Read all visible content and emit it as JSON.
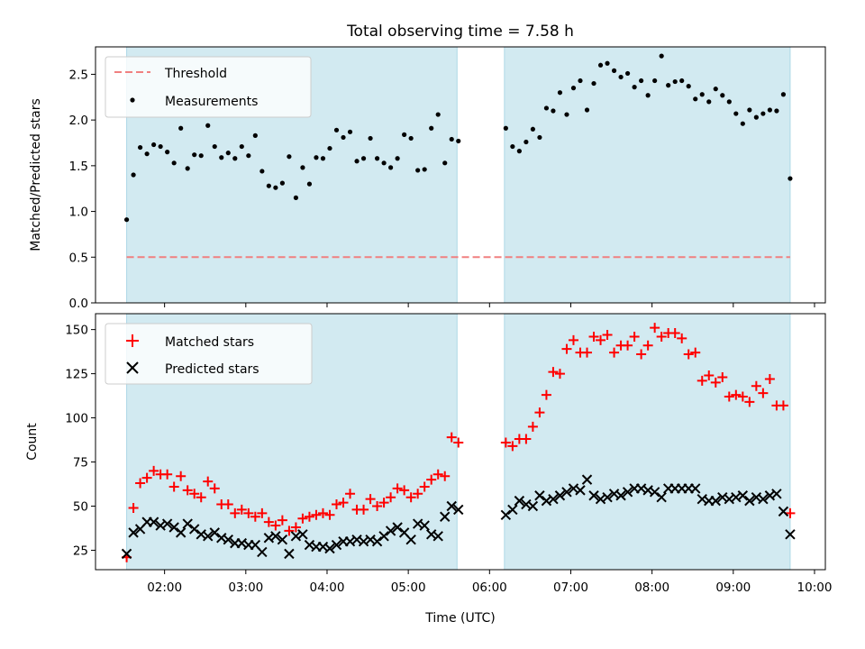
{
  "title": "Total observing time = 7.58 h",
  "colors": {
    "shade": "#add8e6",
    "threshold": "#f08080",
    "measurement": "#000000",
    "matched": "#ff0000",
    "predicted": "#000000"
  },
  "chart_data": [
    {
      "type": "scatter",
      "ylabel": "Matched/Predicted stars",
      "ylim": [
        0,
        2.8
      ],
      "yticks": [
        0.0,
        0.5,
        1.0,
        1.5,
        2.0,
        2.5
      ],
      "ytick_labels": [
        "0.0",
        "0.5",
        "1.0",
        "1.5",
        "2.0",
        "2.5"
      ],
      "legend_position": "upper-left",
      "threshold": {
        "name": "Threshold",
        "value": 0.5,
        "x_start": "01:32",
        "x_end": "09:42"
      },
      "shaded_intervals": [
        [
          "01:32",
          "05:36"
        ],
        [
          "06:11",
          "09:42"
        ]
      ],
      "series": [
        {
          "name": "Measurements",
          "x": [
            "01:32",
            "01:37",
            "01:42",
            "01:47",
            "01:52",
            "01:57",
            "02:02",
            "02:07",
            "02:12",
            "02:17",
            "02:22",
            "02:27",
            "02:32",
            "02:37",
            "02:42",
            "02:47",
            "02:52",
            "02:57",
            "03:02",
            "03:07",
            "03:12",
            "03:17",
            "03:22",
            "03:27",
            "03:32",
            "03:37",
            "03:42",
            "03:47",
            "03:52",
            "03:57",
            "04:02",
            "04:07",
            "04:12",
            "04:17",
            "04:22",
            "04:27",
            "04:32",
            "04:37",
            "04:42",
            "04:47",
            "04:52",
            "04:57",
            "05:02",
            "05:07",
            "05:12",
            "05:17",
            "05:22",
            "05:27",
            "05:32",
            "05:37",
            "06:12",
            "06:17",
            "06:22",
            "06:27",
            "06:32",
            "06:37",
            "06:42",
            "06:47",
            "06:52",
            "06:57",
            "07:02",
            "07:07",
            "07:12",
            "07:17",
            "07:22",
            "07:27",
            "07:32",
            "07:37",
            "07:42",
            "07:47",
            "07:52",
            "07:57",
            "08:02",
            "08:07",
            "08:12",
            "08:17",
            "08:22",
            "08:27",
            "08:32",
            "08:37",
            "08:42",
            "08:47",
            "08:52",
            "08:57",
            "09:02",
            "09:07",
            "09:12",
            "09:17",
            "09:22",
            "09:27",
            "09:32",
            "09:37",
            "09:42"
          ],
          "y": [
            0.91,
            1.4,
            1.7,
            1.63,
            1.73,
            1.71,
            1.65,
            1.53,
            1.91,
            1.47,
            1.62,
            1.61,
            1.94,
            1.71,
            1.59,
            1.64,
            1.58,
            1.71,
            1.61,
            1.83,
            1.44,
            1.28,
            1.26,
            1.31,
            1.6,
            1.15,
            1.48,
            1.3,
            1.59,
            1.58,
            1.69,
            1.89,
            1.81,
            1.87,
            1.55,
            1.58,
            1.8,
            1.58,
            1.53,
            1.48,
            1.58,
            1.84,
            1.8,
            1.45,
            1.46,
            1.91,
            2.06,
            1.53,
            1.79,
            1.77,
            1.91,
            1.71,
            1.66,
            1.76,
            1.9,
            1.81,
            2.13,
            2.1,
            2.3,
            2.06,
            2.35,
            2.43,
            2.11,
            2.4,
            2.6,
            2.62,
            2.54,
            2.47,
            2.51,
            2.36,
            2.43,
            2.27,
            2.43,
            2.7,
            2.38,
            2.42,
            2.43,
            2.37,
            2.23,
            2.28,
            2.2,
            2.34,
            2.27,
            2.2,
            2.07,
            1.96,
            2.11,
            2.03,
            2.07,
            2.11,
            2.1,
            2.28,
            1.36
          ]
        }
      ]
    },
    {
      "type": "scatter",
      "xlabel": "Time (UTC)",
      "ylabel": "Count",
      "ylim": [
        14,
        159
      ],
      "yticks": [
        25,
        50,
        75,
        100,
        125,
        150
      ],
      "ytick_labels": [
        "25",
        "50",
        "75",
        "100",
        "125",
        "150"
      ],
      "x_tick_labels": [
        "02:00",
        "03:00",
        "04:00",
        "05:00",
        "06:00",
        "07:00",
        "08:00",
        "09:00",
        "10:00"
      ],
      "xlim": [
        "01:09",
        "10:08"
      ],
      "legend_position": "upper-left",
      "shaded_intervals": [
        [
          "01:32",
          "05:36"
        ],
        [
          "06:11",
          "09:42"
        ]
      ],
      "series": [
        {
          "name": "Matched stars",
          "x": [
            "01:32",
            "01:37",
            "01:42",
            "01:47",
            "01:52",
            "01:57",
            "02:02",
            "02:07",
            "02:12",
            "02:17",
            "02:22",
            "02:27",
            "02:32",
            "02:37",
            "02:42",
            "02:47",
            "02:52",
            "02:57",
            "03:02",
            "03:07",
            "03:12",
            "03:17",
            "03:22",
            "03:27",
            "03:32",
            "03:37",
            "03:42",
            "03:47",
            "03:52",
            "03:57",
            "04:02",
            "04:07",
            "04:12",
            "04:17",
            "04:22",
            "04:27",
            "04:32",
            "04:37",
            "04:42",
            "04:47",
            "04:52",
            "04:57",
            "05:02",
            "05:07",
            "05:12",
            "05:17",
            "05:22",
            "05:27",
            "05:32",
            "05:37",
            "06:12",
            "06:17",
            "06:22",
            "06:27",
            "06:32",
            "06:37",
            "06:42",
            "06:47",
            "06:52",
            "06:57",
            "07:02",
            "07:07",
            "07:12",
            "07:17",
            "07:22",
            "07:27",
            "07:32",
            "07:37",
            "07:42",
            "07:47",
            "07:52",
            "07:57",
            "08:02",
            "08:07",
            "08:12",
            "08:17",
            "08:22",
            "08:27",
            "08:32",
            "08:37",
            "08:42",
            "08:47",
            "08:52",
            "08:57",
            "09:02",
            "09:07",
            "09:12",
            "09:17",
            "09:22",
            "09:27",
            "09:32",
            "09:37",
            "09:42"
          ],
          "y": [
            21,
            49,
            63,
            66,
            70,
            68,
            68,
            61,
            67,
            59,
            57,
            55,
            64,
            60,
            51,
            51,
            46,
            48,
            46,
            44,
            46,
            41,
            39,
            42,
            36,
            38,
            43,
            44,
            45,
            46,
            45,
            51,
            52,
            57,
            48,
            48,
            54,
            50,
            52,
            55,
            60,
            59,
            55,
            57,
            61,
            65,
            68,
            67,
            89,
            86,
            86,
            84,
            88,
            88,
            95,
            103,
            113,
            126,
            125,
            139,
            144,
            137,
            137,
            146,
            144,
            147,
            137,
            141,
            141,
            146,
            136,
            141,
            151,
            146,
            148,
            148,
            145,
            136,
            137,
            121,
            124,
            120,
            123,
            112,
            113,
            112,
            109,
            118,
            114,
            122,
            107,
            107,
            46
          ]
        },
        {
          "name": "Predicted stars",
          "x": [
            "01:32",
            "01:37",
            "01:42",
            "01:47",
            "01:52",
            "01:57",
            "02:02",
            "02:07",
            "02:12",
            "02:17",
            "02:22",
            "02:27",
            "02:32",
            "02:37",
            "02:42",
            "02:47",
            "02:52",
            "02:57",
            "03:02",
            "03:07",
            "03:12",
            "03:17",
            "03:22",
            "03:27",
            "03:32",
            "03:37",
            "03:42",
            "03:47",
            "03:52",
            "03:57",
            "04:02",
            "04:07",
            "04:12",
            "04:17",
            "04:22",
            "04:27",
            "04:32",
            "04:37",
            "04:42",
            "04:47",
            "04:52",
            "04:57",
            "05:02",
            "05:07",
            "05:12",
            "05:17",
            "05:22",
            "05:27",
            "05:32",
            "05:37",
            "06:12",
            "06:17",
            "06:22",
            "06:27",
            "06:32",
            "06:37",
            "06:42",
            "06:47",
            "06:52",
            "06:57",
            "07:02",
            "07:07",
            "07:12",
            "07:17",
            "07:22",
            "07:27",
            "07:32",
            "07:37",
            "07:42",
            "07:47",
            "07:52",
            "07:57",
            "08:02",
            "08:07",
            "08:12",
            "08:17",
            "08:22",
            "08:27",
            "08:32",
            "08:37",
            "08:42",
            "08:47",
            "08:52",
            "08:57",
            "09:02",
            "09:07",
            "09:12",
            "09:17",
            "09:22",
            "09:27",
            "09:32",
            "09:37",
            "09:42"
          ],
          "y": [
            23,
            35,
            37,
            41,
            41,
            39,
            40,
            38,
            35,
            40,
            37,
            34,
            33,
            35,
            32,
            31,
            29,
            29,
            28,
            28,
            24,
            32,
            33,
            31,
            23,
            33,
            34,
            28,
            27,
            27,
            26,
            28,
            30,
            30,
            31,
            30,
            31,
            30,
            33,
            36,
            38,
            35,
            31,
            40,
            39,
            34,
            33,
            44,
            50,
            48,
            45,
            48,
            53,
            51,
            50,
            56,
            53,
            54,
            56,
            58,
            60,
            59,
            65,
            56,
            54,
            55,
            57,
            56,
            58,
            60,
            60,
            59,
            58,
            55,
            60,
            60,
            60,
            60,
            60,
            54,
            53,
            53,
            55,
            54,
            55,
            56,
            53,
            55,
            54,
            56,
            57,
            47,
            34
          ]
        }
      ]
    }
  ]
}
